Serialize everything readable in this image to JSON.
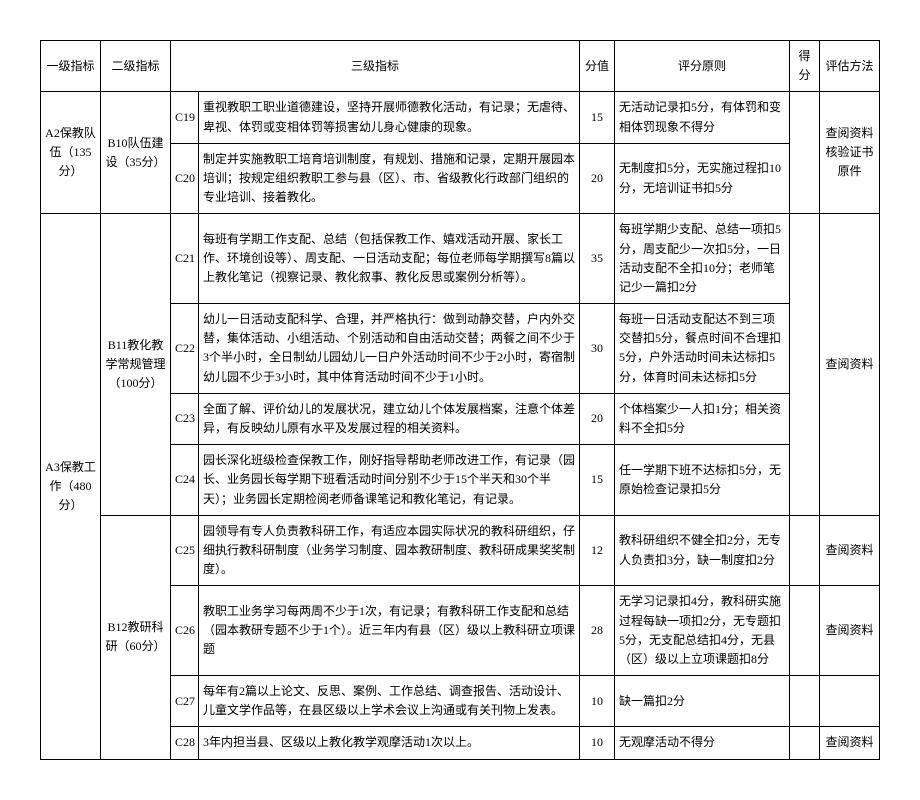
{
  "headers": {
    "l1": "一级指标",
    "l2": "二级指标",
    "l3": "三级指标",
    "score": "分值",
    "rule": "评分原则",
    "get": "得分",
    "method": "评估方法"
  },
  "l1_a2": "A2保教队伍（135分）",
  "l1_a3": "A3保教工作（480分）",
  "l2_b10": "B10队伍建设（35分）",
  "l2_b11": "B11教化教学常规管理（100分）",
  "l2_b12": "B12教研科研（60分）",
  "rows": {
    "c19": {
      "code": "C19",
      "desc": "重视教职工职业道德建设，坚持开展师德教化活动，有记录；无虐待、卑视、体罚或变相体罚等损害幼儿身心健康的现象。",
      "score": "15",
      "rule": "无活动记录扣5分，有体罚和变相体罚现象不得分",
      "method": ""
    },
    "c20": {
      "code": "C20",
      "desc": "制定并实施教职工培育培训制度，有规划、措施和记录，定期开展园本培训；按规定组织教职工参与县（区）、市、省级教化行政部门组织的专业培训、接着教化。",
      "score": "20",
      "rule": "无制度扣5分，无实施过程扣10分，无培训证书扣5分",
      "method": "查阅资料核验证书原件"
    },
    "c21": {
      "code": "C21",
      "desc": "每班有学期工作支配、总结（包括保教工作、嬉戏活动开展、家长工作、环境创设等）、周支配、一日活动支配；每位老师每学期撰写8篇以上教化笔记（视察记录、教化叙事、教化反思或案例分析等）。",
      "score": "35",
      "rule": "每班学期少支配、总结一项扣5分，周支配少一次扣5分，一日活动支配不全扣10分；老师笔记少一篇扣2分",
      "method": ""
    },
    "c22": {
      "code": "C22",
      "desc": "幼儿一日活动支配科学、合理，并严格执行：做到动静交替，户内外交替，集体活动、小组活动、个别活动和自由活动交替；两餐之间不少于3个半小时，全日制幼儿园幼儿一日户外活动时间不少于2小时，寄宿制幼儿园不少于3小时，其中体育活动时间不少于1小时。",
      "score": "30",
      "rule": "每班一日活动支配达不到三项交替扣5分，餐点时间不合理扣5分，户外活动时间未达标扣5分，体育时间未达标扣5分",
      "method": "查阅资料"
    },
    "c23": {
      "code": "C23",
      "desc": "全面了解、评价幼儿的发展状况，建立幼儿个体发展档案，注意个体差异，有反映幼儿原有水平及发展过程的相关资料。",
      "score": "20",
      "rule": "个体档案少一人扣1分；相关资料不全扣5分",
      "method": ""
    },
    "c24": {
      "code": "C24",
      "desc": "园长深化班级检查保教工作，刚好指导帮助老师改进工作，有记录（园长、业务园长每学期下班看活动时间分别不少于15个半天和30个半天）；业务园长定期检阅老师备课笔记和教化笔记，有记录。",
      "score": "15",
      "rule": "任一学期下班不达标扣5分，无原始检查记录扣5分",
      "method": ""
    },
    "c25": {
      "code": "C25",
      "desc": "园领导有专人负责教科研工作，有适应本园实际状况的教科研组织，仔细执行教科研制度（业务学习制度、园本教研制度、教科研成果奖奖制度）。",
      "score": "12",
      "rule": "教科研组织不健全扣2分，无专人负责扣3分，缺一制度扣2分",
      "method": "查阅资料"
    },
    "c26": {
      "code": "C26",
      "desc": "教职工业务学习每两周不少于1次，有记录；有教科研工作支配和总结（园本教研专题不少于1个）。近三年内有县（区）级以上教科研立项课题",
      "score": "28",
      "rule": "无学习记录扣4分，教科研实施过程每缺一项扣2分，无专题扣5分，无支配总结扣4分，无县（区）级以上立项课题扣8分",
      "method": "查阅资料"
    },
    "c27": {
      "code": "C27",
      "desc": "每年有2篇以上论文、反思、案例、工作总结、调查报告、活动设计、儿童文学作品等，在县区级以上学术会议上沟通或有关刊物上发表。",
      "score": "10",
      "rule": "缺一篇扣2分",
      "method": ""
    },
    "c28": {
      "code": "C28",
      "desc": "3年内担当县、区级以上教化教学观摩活动1次以上。",
      "score": "10",
      "rule": "无观摩活动不得分",
      "method": "查阅资料"
    }
  }
}
